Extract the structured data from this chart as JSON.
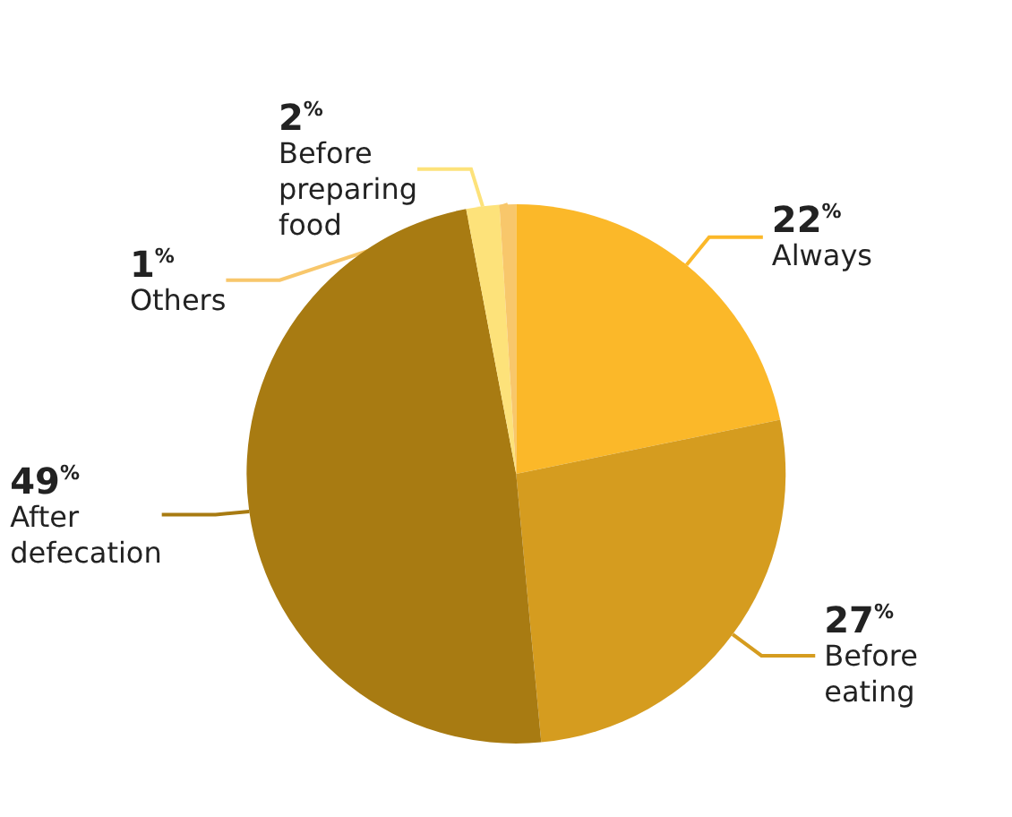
{
  "chart_data": {
    "type": "pie",
    "categories": [
      "Always",
      "Before eating",
      "After defecation",
      "Before preparing food",
      "Others"
    ],
    "values": [
      22,
      27,
      49,
      2,
      1
    ],
    "colors": [
      "#fbb829",
      "#d59c1f",
      "#a87b12",
      "#fde27a",
      "#f8c76b"
    ],
    "value_labels": [
      "22$^{%}$",
      "27$^{%}$",
      "49$^{%}$",
      "2$^{%}$",
      "1$^{%}$"
    ]
  }
}
